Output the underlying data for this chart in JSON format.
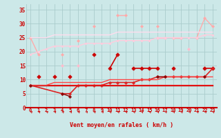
{
  "xlabel": "Vent moyen/en rafales ( km/h )",
  "x": [
    0,
    1,
    2,
    3,
    4,
    5,
    6,
    7,
    8,
    9,
    10,
    11,
    12,
    13,
    14,
    15,
    16,
    17,
    18,
    19,
    20,
    21,
    22,
    23
  ],
  "series": [
    {
      "color": "#ffaaaa",
      "linewidth": 1.0,
      "marker": "D",
      "markersize": 2.0,
      "connect_nulls": false,
      "y": [
        25,
        19,
        null,
        null,
        19,
        null,
        24,
        null,
        29,
        null,
        null,
        33,
        33,
        null,
        29,
        null,
        29,
        null,
        25,
        25,
        null,
        25,
        32,
        29
      ]
    },
    {
      "color": "#ffbbcc",
      "linewidth": 1.0,
      "marker": "D",
      "markersize": 2.0,
      "connect_nulls": false,
      "y": [
        null,
        null,
        null,
        null,
        15,
        null,
        15,
        null,
        null,
        null,
        null,
        null,
        null,
        null,
        null,
        null,
        25,
        25,
        null,
        null,
        21,
        null,
        null,
        null
      ]
    },
    {
      "color": "#ffccdd",
      "linewidth": 1.0,
      "marker": "D",
      "markersize": 1.5,
      "connect_nulls": true,
      "y": [
        19,
        20,
        21,
        22,
        22,
        22,
        22,
        23,
        23,
        23,
        23,
        24,
        24,
        24,
        24,
        24,
        25,
        25,
        25,
        25,
        25,
        25,
        26,
        26
      ]
    },
    {
      "color": "#ffddee",
      "linewidth": 1.0,
      "marker": null,
      "markersize": 0,
      "connect_nulls": true,
      "y": [
        25,
        25,
        25,
        26,
        26,
        26,
        26,
        26,
        26,
        26,
        26,
        27,
        27,
        27,
        27,
        27,
        27,
        27,
        27,
        27,
        27,
        27,
        27,
        27
      ]
    },
    {
      "color": "#cc0000",
      "linewidth": 1.2,
      "marker": "P",
      "markersize": 3.5,
      "connect_nulls": false,
      "y": [
        null,
        11,
        null,
        11,
        null,
        11,
        null,
        null,
        19,
        null,
        14,
        19,
        null,
        14,
        14,
        14,
        14,
        null,
        14,
        null,
        null,
        null,
        14,
        14
      ]
    },
    {
      "color": "#dd2222",
      "linewidth": 1.2,
      "marker": "P",
      "markersize": 2.5,
      "connect_nulls": true,
      "y": [
        8,
        null,
        null,
        null,
        5,
        5,
        8,
        8,
        8,
        8,
        9,
        9,
        9,
        9,
        10,
        10,
        11,
        11,
        11,
        11,
        11,
        11,
        11,
        14
      ]
    },
    {
      "color": "#ff0000",
      "linewidth": 1.5,
      "marker": null,
      "markersize": 0,
      "connect_nulls": true,
      "y": [
        8,
        8,
        8,
        8,
        8,
        8,
        8,
        8,
        8,
        8,
        8,
        8,
        8,
        8,
        8,
        8,
        8,
        8,
        8,
        8,
        8,
        8,
        8,
        8
      ]
    },
    {
      "color": "#ff4444",
      "linewidth": 1.0,
      "marker": null,
      "markersize": 0,
      "connect_nulls": true,
      "y": [
        8,
        8,
        8,
        9,
        9,
        9,
        9,
        9,
        9,
        9,
        10,
        10,
        10,
        10,
        10,
        10,
        10,
        11,
        11,
        11,
        11,
        11,
        11,
        11
      ]
    },
    {
      "color": "#cc2222",
      "linewidth": 1.0,
      "marker": null,
      "markersize": 0,
      "connect_nulls": true,
      "y": [
        8,
        8,
        8,
        8,
        8,
        8,
        8,
        8,
        8,
        8,
        8,
        8,
        8,
        8,
        8,
        8,
        8,
        8,
        8,
        8,
        8,
        8,
        8,
        8
      ]
    },
    {
      "color": "#880000",
      "linewidth": 1.0,
      "marker": "P",
      "markersize": 2.5,
      "connect_nulls": false,
      "y": [
        8,
        null,
        null,
        null,
        5,
        4,
        null,
        null,
        null,
        null,
        null,
        null,
        null,
        null,
        null,
        null,
        11,
        11,
        null,
        null,
        null,
        null,
        11,
        null
      ]
    }
  ],
  "ylim": [
    0,
    37
  ],
  "xlim": [
    -0.5,
    23.5
  ],
  "yticks": [
    0,
    5,
    10,
    15,
    20,
    25,
    30,
    35
  ],
  "xticks": [
    0,
    1,
    2,
    3,
    4,
    5,
    6,
    7,
    8,
    9,
    10,
    11,
    12,
    13,
    14,
    15,
    16,
    17,
    18,
    19,
    20,
    21,
    22,
    23
  ],
  "bg_color": "#cce8e8",
  "grid_color": "#aacccc",
  "tick_color": "#cc0000",
  "label_color": "#cc0000",
  "arrow_color": "#cc0000",
  "axis_line_color": "#cc0000"
}
